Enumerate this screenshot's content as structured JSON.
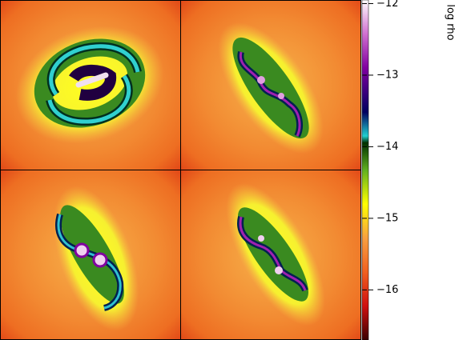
{
  "chart_data": {
    "type": "heatmap",
    "colorbar_label": "log rho",
    "clim": [
      -16.7,
      -11.95
    ],
    "cticks": [
      {
        "value": -12,
        "label": "−12"
      },
      {
        "value": -13,
        "label": "−13"
      },
      {
        "value": -14,
        "label": "−14"
      },
      {
        "value": -15,
        "label": "−15"
      },
      {
        "value": -16,
        "label": "−16"
      }
    ]
  }
}
